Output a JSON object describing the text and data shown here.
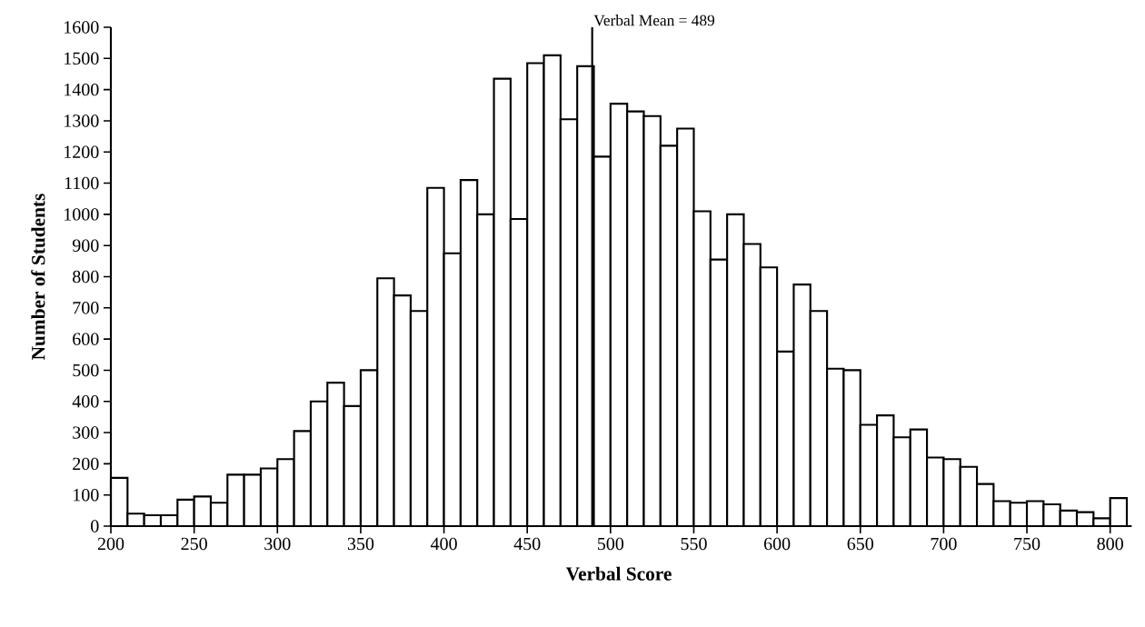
{
  "chart_data": {
    "type": "histogram",
    "xlabel": "Verbal Score",
    "ylabel": "Number of Students",
    "bins": [
      200,
      210,
      220,
      230,
      240,
      250,
      260,
      270,
      280,
      290,
      300,
      310,
      320,
      330,
      340,
      350,
      360,
      370,
      380,
      390,
      400,
      410,
      420,
      430,
      440,
      450,
      460,
      470,
      480,
      490,
      500,
      510,
      520,
      530,
      540,
      550,
      560,
      570,
      580,
      590,
      600,
      610,
      620,
      630,
      640,
      650,
      660,
      670,
      680,
      690,
      700,
      710,
      720,
      730,
      740,
      750,
      760,
      770,
      780,
      790,
      800,
      810
    ],
    "values": [
      155,
      40,
      35,
      35,
      85,
      95,
      75,
      165,
      165,
      185,
      215,
      305,
      400,
      460,
      385,
      500,
      795,
      740,
      690,
      1085,
      875,
      1110,
      1000,
      1435,
      985,
      1485,
      1510,
      1305,
      1475,
      1185,
      1355,
      1330,
      1315,
      1220,
      1275,
      1010,
      855,
      1000,
      905,
      830,
      560,
      775,
      690,
      505,
      500,
      325,
      355,
      285,
      310,
      220,
      215,
      190,
      135,
      80,
      75,
      80,
      70,
      50,
      45,
      25,
      90
    ],
    "color": "#000000",
    "xlim": [
      200,
      810
    ],
    "ylim": [
      0,
      1600
    ],
    "xticks": [
      200,
      250,
      300,
      350,
      400,
      450,
      500,
      550,
      600,
      650,
      700,
      750,
      800
    ],
    "yticks": [
      0,
      100,
      200,
      300,
      400,
      500,
      600,
      700,
      800,
      900,
      1000,
      1100,
      1200,
      1300,
      1400,
      1500,
      1600
    ],
    "grid": false,
    "ref_lines": [
      {
        "axis": "x",
        "value": 489,
        "label": "Verbal Mean = 489"
      }
    ]
  }
}
